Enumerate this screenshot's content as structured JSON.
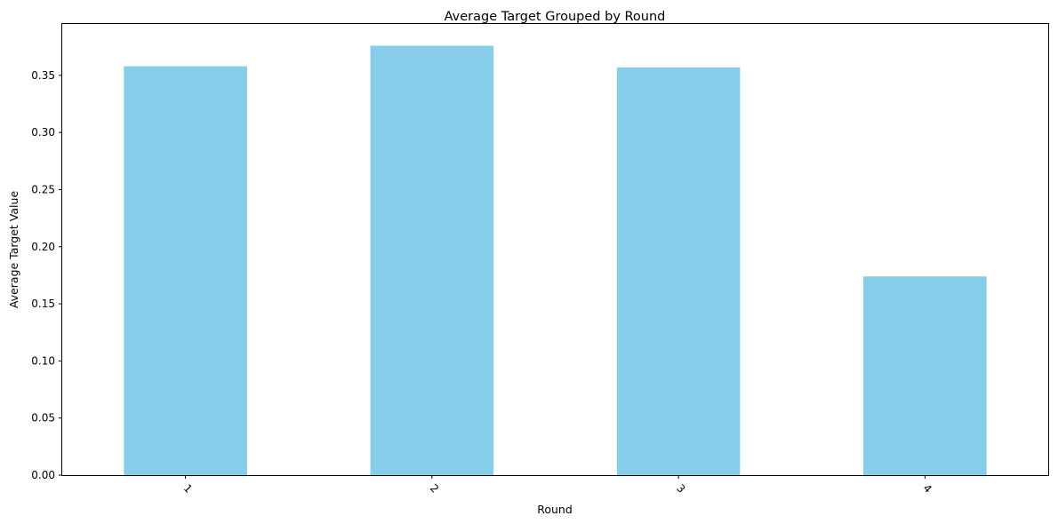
{
  "chart_data": {
    "type": "bar",
    "title": "Average Target Grouped by Round",
    "xlabel": "Round",
    "ylabel": "Average Target Value",
    "categories": [
      "1",
      "2",
      "3",
      "4"
    ],
    "values": [
      0.358,
      0.376,
      0.357,
      0.174
    ],
    "ylim": [
      0,
      0.395
    ],
    "yticks": [
      0.0,
      0.05,
      0.1,
      0.15,
      0.2,
      0.25,
      0.3,
      0.35
    ],
    "ytick_labels": [
      "0.00",
      "0.05",
      "0.10",
      "0.15",
      "0.20",
      "0.25",
      "0.30",
      "0.35"
    ],
    "xtick_rotation": 45,
    "bar_color": "#87ceeb",
    "grid": false,
    "legend": false
  }
}
